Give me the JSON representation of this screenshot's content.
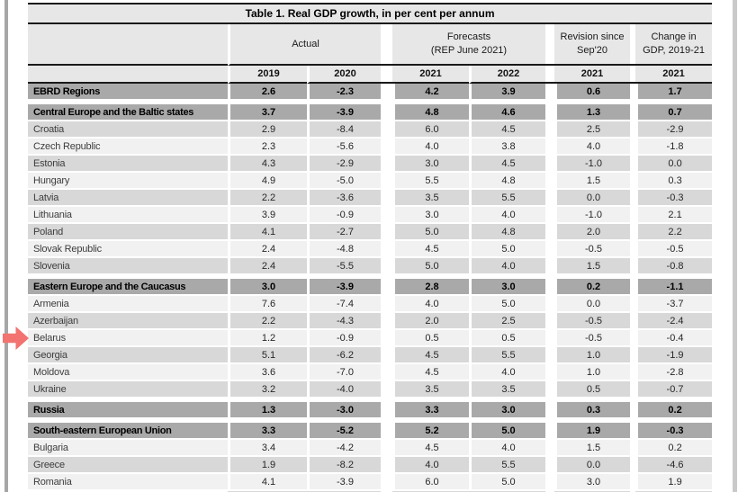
{
  "table": {
    "title": "Table 1. Real GDP growth, in per cent per annum",
    "column_groups": [
      {
        "line1": "Actual",
        "line2": ""
      },
      {
        "line1": "Forecasts",
        "line2": "(REP June 2021)"
      },
      {
        "line1": "Revision since",
        "line2": "Sep'20"
      },
      {
        "line1": "Change in",
        "line2": "GDP, 2019-21"
      }
    ],
    "year_columns": [
      "2019",
      "2020",
      "2021",
      "2022",
      "2021",
      "2021"
    ],
    "rows": [
      {
        "label": "EBRD Regions",
        "type": "region",
        "gap_before": false,
        "values": [
          "2.6",
          "-2.3",
          "4.2",
          "3.9",
          "0.6",
          "1.7"
        ]
      },
      {
        "label": "Central Europe and the Baltic states",
        "type": "region",
        "gap_before": true,
        "values": [
          "3.7",
          "-3.9",
          "4.8",
          "4.6",
          "1.3",
          "0.7"
        ]
      },
      {
        "label": "Croatia",
        "type": "country",
        "shade": "dark",
        "values": [
          "2.9",
          "-8.4",
          "6.0",
          "4.5",
          "2.5",
          "-2.9"
        ]
      },
      {
        "label": "Czech Republic",
        "type": "country",
        "shade": "light",
        "values": [
          "2.3",
          "-5.6",
          "4.0",
          "3.8",
          "4.0",
          "-1.8"
        ]
      },
      {
        "label": "Estonia",
        "type": "country",
        "shade": "dark",
        "values": [
          "4.3",
          "-2.9",
          "3.0",
          "4.5",
          "-1.0",
          "0.0"
        ]
      },
      {
        "label": "Hungary",
        "type": "country",
        "shade": "light",
        "values": [
          "4.9",
          "-5.0",
          "5.5",
          "4.8",
          "1.5",
          "0.3"
        ]
      },
      {
        "label": "Latvia",
        "type": "country",
        "shade": "dark",
        "values": [
          "2.2",
          "-3.6",
          "3.5",
          "5.5",
          "0.0",
          "-0.3"
        ]
      },
      {
        "label": "Lithuania",
        "type": "country",
        "shade": "light",
        "values": [
          "3.9",
          "-0.9",
          "3.0",
          "4.0",
          "-1.0",
          "2.1"
        ]
      },
      {
        "label": "Poland",
        "type": "country",
        "shade": "dark",
        "values": [
          "4.1",
          "-2.7",
          "5.0",
          "4.8",
          "2.0",
          "2.2"
        ]
      },
      {
        "label": "Slovak Republic",
        "type": "country",
        "shade": "light",
        "values": [
          "2.4",
          "-4.8",
          "4.5",
          "5.0",
          "-0.5",
          "-0.5"
        ]
      },
      {
        "label": "Slovenia",
        "type": "country",
        "shade": "dark",
        "values": [
          "2.4",
          "-5.5",
          "5.0",
          "4.0",
          "1.5",
          "-0.8"
        ]
      },
      {
        "label": "Eastern Europe and the Caucasus",
        "type": "region",
        "gap_before": true,
        "values": [
          "3.0",
          "-3.9",
          "2.8",
          "3.0",
          "0.2",
          "-1.1"
        ]
      },
      {
        "label": "Armenia",
        "type": "country",
        "shade": "light",
        "values": [
          "7.6",
          "-7.4",
          "4.0",
          "5.0",
          "0.0",
          "-3.7"
        ]
      },
      {
        "label": "Azerbaijan",
        "type": "country",
        "shade": "dark",
        "values": [
          "2.2",
          "-4.3",
          "2.0",
          "2.5",
          "-0.5",
          "-2.4"
        ]
      },
      {
        "label": "Belarus",
        "type": "country",
        "shade": "light",
        "marker": true,
        "values": [
          "1.2",
          "-0.9",
          "0.5",
          "0.5",
          "-0.5",
          "-0.4"
        ]
      },
      {
        "label": "Georgia",
        "type": "country",
        "shade": "dark",
        "values": [
          "5.1",
          "-6.2",
          "4.5",
          "5.5",
          "1.0",
          "-1.9"
        ]
      },
      {
        "label": "Moldova",
        "type": "country",
        "shade": "light",
        "values": [
          "3.6",
          "-7.0",
          "4.5",
          "4.0",
          "1.0",
          "-2.8"
        ]
      },
      {
        "label": "Ukraine",
        "type": "country",
        "shade": "dark",
        "values": [
          "3.2",
          "-4.0",
          "3.5",
          "3.5",
          "0.5",
          "-0.7"
        ]
      },
      {
        "label": "Russia",
        "type": "region",
        "gap_before": true,
        "values": [
          "1.3",
          "-3.0",
          "3.3",
          "3.0",
          "0.3",
          "0.2"
        ]
      },
      {
        "label": "South-eastern European Union",
        "type": "region",
        "gap_before": true,
        "values": [
          "3.3",
          "-5.2",
          "5.2",
          "5.0",
          "1.9",
          "-0.3"
        ]
      },
      {
        "label": "Bulgaria",
        "type": "country",
        "shade": "light",
        "values": [
          "3.4",
          "-4.2",
          "4.5",
          "4.0",
          "1.5",
          "0.2"
        ]
      },
      {
        "label": "Greece",
        "type": "country",
        "shade": "dark",
        "values": [
          "1.9",
          "-8.2",
          "4.0",
          "5.5",
          "0.0",
          "-4.6"
        ]
      },
      {
        "label": "Romania",
        "type": "country",
        "shade": "light",
        "values": [
          "4.1",
          "-3.9",
          "6.0",
          "5.0",
          "3.0",
          "1.9"
        ]
      }
    ]
  },
  "annotation": {
    "icon": "red-arrow-icon",
    "color": "#f2736f",
    "points_to": "Belarus"
  },
  "colors": {
    "region_row": "#a9a9a9",
    "country_row_dark": "#d8d8d8",
    "country_row_light": "#f1f1f1",
    "header_bg": "#e7e7e7",
    "rule_line": "#1a1a1a"
  }
}
